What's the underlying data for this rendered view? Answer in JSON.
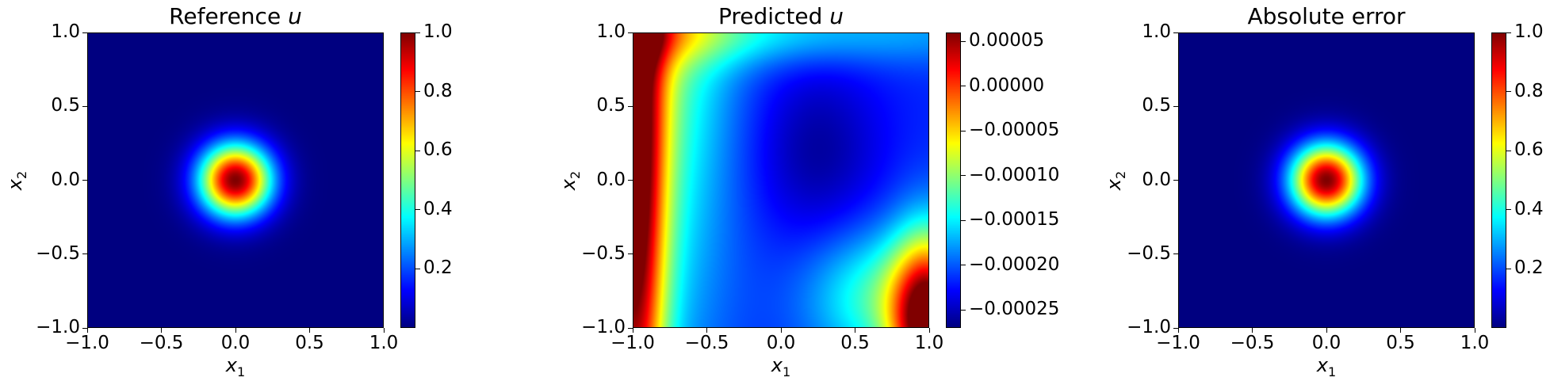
{
  "chart_data": [
    {
      "type": "heatmap",
      "title": "Reference u",
      "title_text": "Reference ",
      "title_var": "u",
      "xlabel": "x",
      "xlabel_sub": "1",
      "ylabel": "x",
      "ylabel_sub": "2",
      "xlim": [
        -1.0,
        1.0
      ],
      "ylim": [
        -1.0,
        1.0
      ],
      "xticks": [
        "−1.0",
        "−0.5",
        "0.0",
        "0.5",
        "1.0"
      ],
      "yticks": [
        "1.0",
        "0.5",
        "0.0",
        "−0.5",
        "−1.0"
      ],
      "colormap": "jet",
      "field": "gaussian bump centered at (0, 0), peak 1.0",
      "colorbar": {
        "min": 0.0,
        "max": 1.0,
        "ticks": [
          "1.0",
          "0.8",
          "0.6",
          "0.4",
          "0.2"
        ],
        "tick_values": [
          1.0,
          0.8,
          0.6,
          0.4,
          0.2
        ]
      }
    },
    {
      "type": "heatmap",
      "title": "Predicted u",
      "title_text": "Predicted ",
      "title_var": "u",
      "xlabel": "x",
      "xlabel_sub": "1",
      "ylabel": "x",
      "ylabel_sub": "2",
      "xlim": [
        -1.0,
        1.0
      ],
      "ylim": [
        -1.0,
        1.0
      ],
      "xticks": [
        "−1.0",
        "−0.5",
        "0.0",
        "0.5",
        "1.0"
      ],
      "yticks": [
        "1.0",
        "0.5",
        "0.0",
        "−0.5",
        "−1.0"
      ],
      "colormap": "jet",
      "field": "smooth field: minimum near (0.25, 0.2), maxima at left edge and bottom-right corner",
      "colorbar": {
        "min": -0.00027,
        "max": 6e-05,
        "ticks": [
          "0.00005",
          "0.00000",
          "−0.00005",
          "−0.00010",
          "−0.00015",
          "−0.00020",
          "−0.00025"
        ],
        "tick_values": [
          5e-05,
          0.0,
          -5e-05,
          -0.0001,
          -0.00015,
          -0.0002,
          -0.00025
        ]
      }
    },
    {
      "type": "heatmap",
      "title": "Absolute error",
      "title_text": "Absolute error",
      "title_var": "",
      "xlabel": "x",
      "xlabel_sub": "1",
      "ylabel": "x",
      "ylabel_sub": "2",
      "xlim": [
        -1.0,
        1.0
      ],
      "ylim": [
        -1.0,
        1.0
      ],
      "xticks": [
        "−1.0",
        "−0.5",
        "0.0",
        "0.5",
        "1.0"
      ],
      "yticks": [
        "1.0",
        "0.5",
        "0.0",
        "−0.5",
        "−1.0"
      ],
      "colormap": "jet",
      "field": "gaussian bump centered at (0, 0), peak 1.0",
      "colorbar": {
        "min": 0.0,
        "max": 1.0,
        "ticks": [
          "1.0",
          "0.8",
          "0.6",
          "0.4",
          "0.2"
        ],
        "tick_values": [
          1.0,
          0.8,
          0.6,
          0.4,
          0.2
        ]
      }
    }
  ]
}
